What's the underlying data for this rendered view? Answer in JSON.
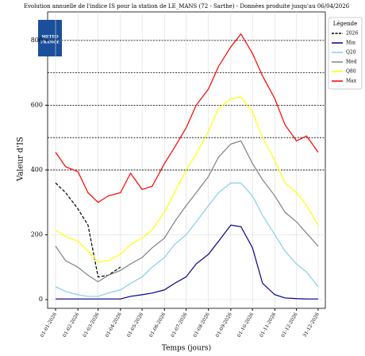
{
  "chart_data": {
    "type": "line",
    "title": "Evolution annuelle de l'indice IS pour la station de LE_MANS (72 - Sarthe) - Données produite jusqu'au 06/04/2026",
    "x_label": "Temps (jours)",
    "y_label": "Valeur d'IS",
    "logo_text": [
      "METEO",
      "FRANCE"
    ],
    "legend_title": "Légende",
    "legend_position": "right",
    "x": [
      "2026-01-01",
      "2026-01-15",
      "2026-02-01",
      "2026-02-15",
      "2026-03-01",
      "2026-03-15",
      "2026-04-01",
      "2026-04-15",
      "2026-05-01",
      "2026-05-15",
      "2026-06-01",
      "2026-06-15",
      "2026-07-01",
      "2026-07-15",
      "2026-08-01",
      "2026-08-15",
      "2026-09-01",
      "2026-09-15",
      "2026-10-01",
      "2026-10-15",
      "2026-11-01",
      "2026-11-15",
      "2026-12-01",
      "2026-12-15",
      "2026-12-31"
    ],
    "series": [
      {
        "name": "2026",
        "color": "#000000",
        "dash": true,
        "values": [
          360,
          330,
          280,
          230,
          70,
          75,
          100,
          null,
          null,
          null,
          null,
          null,
          null,
          null,
          null,
          null,
          null,
          null,
          null,
          null,
          null,
          null,
          null,
          null,
          null
        ]
      },
      {
        "name": "Min",
        "color": "#00008b",
        "values": [
          2,
          2,
          2,
          2,
          2,
          2,
          2,
          10,
          15,
          20,
          30,
          50,
          70,
          110,
          140,
          180,
          230,
          225,
          160,
          50,
          15,
          5,
          3,
          2,
          2
        ]
      },
      {
        "name": "Q20",
        "color": "#87ceeb",
        "values": [
          40,
          25,
          15,
          10,
          10,
          20,
          30,
          50,
          70,
          100,
          130,
          170,
          200,
          240,
          290,
          330,
          360,
          360,
          320,
          260,
          200,
          150,
          110,
          85,
          40
        ]
      },
      {
        "name": "Med",
        "color": "#808080",
        "values": [
          165,
          120,
          100,
          75,
          55,
          75,
          90,
          110,
          130,
          160,
          190,
          240,
          290,
          330,
          380,
          440,
          480,
          490,
          420,
          370,
          320,
          270,
          240,
          205,
          165
        ]
      },
      {
        "name": "Q80",
        "color": "#ffff00",
        "values": [
          215,
          195,
          180,
          150,
          115,
          120,
          140,
          170,
          190,
          215,
          270,
          330,
          400,
          450,
          520,
          590,
          620,
          625,
          580,
          500,
          430,
          360,
          330,
          290,
          230
        ]
      },
      {
        "name": "Max",
        "color": "#ff0000",
        "values": [
          455,
          410,
          395,
          330,
          300,
          320,
          330,
          390,
          340,
          350,
          420,
          470,
          530,
          600,
          650,
          720,
          780,
          820,
          760,
          690,
          620,
          540,
          490,
          505,
          455
        ]
      }
    ],
    "xlim": [
      "2025-12-21",
      "2027-01-10"
    ],
    "xticks": [
      {
        "value": "2026-01-01",
        "label": "01-01-2026"
      },
      {
        "value": "2026-02-01",
        "label": "01-02-2026"
      },
      {
        "value": "2026-03-01",
        "label": "01-03-2026"
      },
      {
        "value": "2026-04-01",
        "label": "01-04-2026"
      },
      {
        "value": "2026-05-01",
        "label": "01-05-2026"
      },
      {
        "value": "2026-06-01",
        "label": "01-06-2026"
      },
      {
        "value": "2026-07-01",
        "label": "01-07-2026"
      },
      {
        "value": "2026-08-01",
        "label": "01-08-2026"
      },
      {
        "value": "2026-09-01",
        "label": "01-09-2026"
      },
      {
        "value": "2026-10-01",
        "label": "01-10-2026"
      },
      {
        "value": "2026-11-01",
        "label": "01-11-2026"
      },
      {
        "value": "2026-12-01",
        "label": "01-12-2026"
      },
      {
        "value": "2026-12-31",
        "label": "31-12-2026"
      }
    ],
    "ylim": [
      -27,
      888
    ],
    "yticks": [
      0,
      200,
      400,
      600,
      800
    ],
    "hlines": [
      400,
      500,
      600,
      700,
      800
    ],
    "grid": true
  }
}
